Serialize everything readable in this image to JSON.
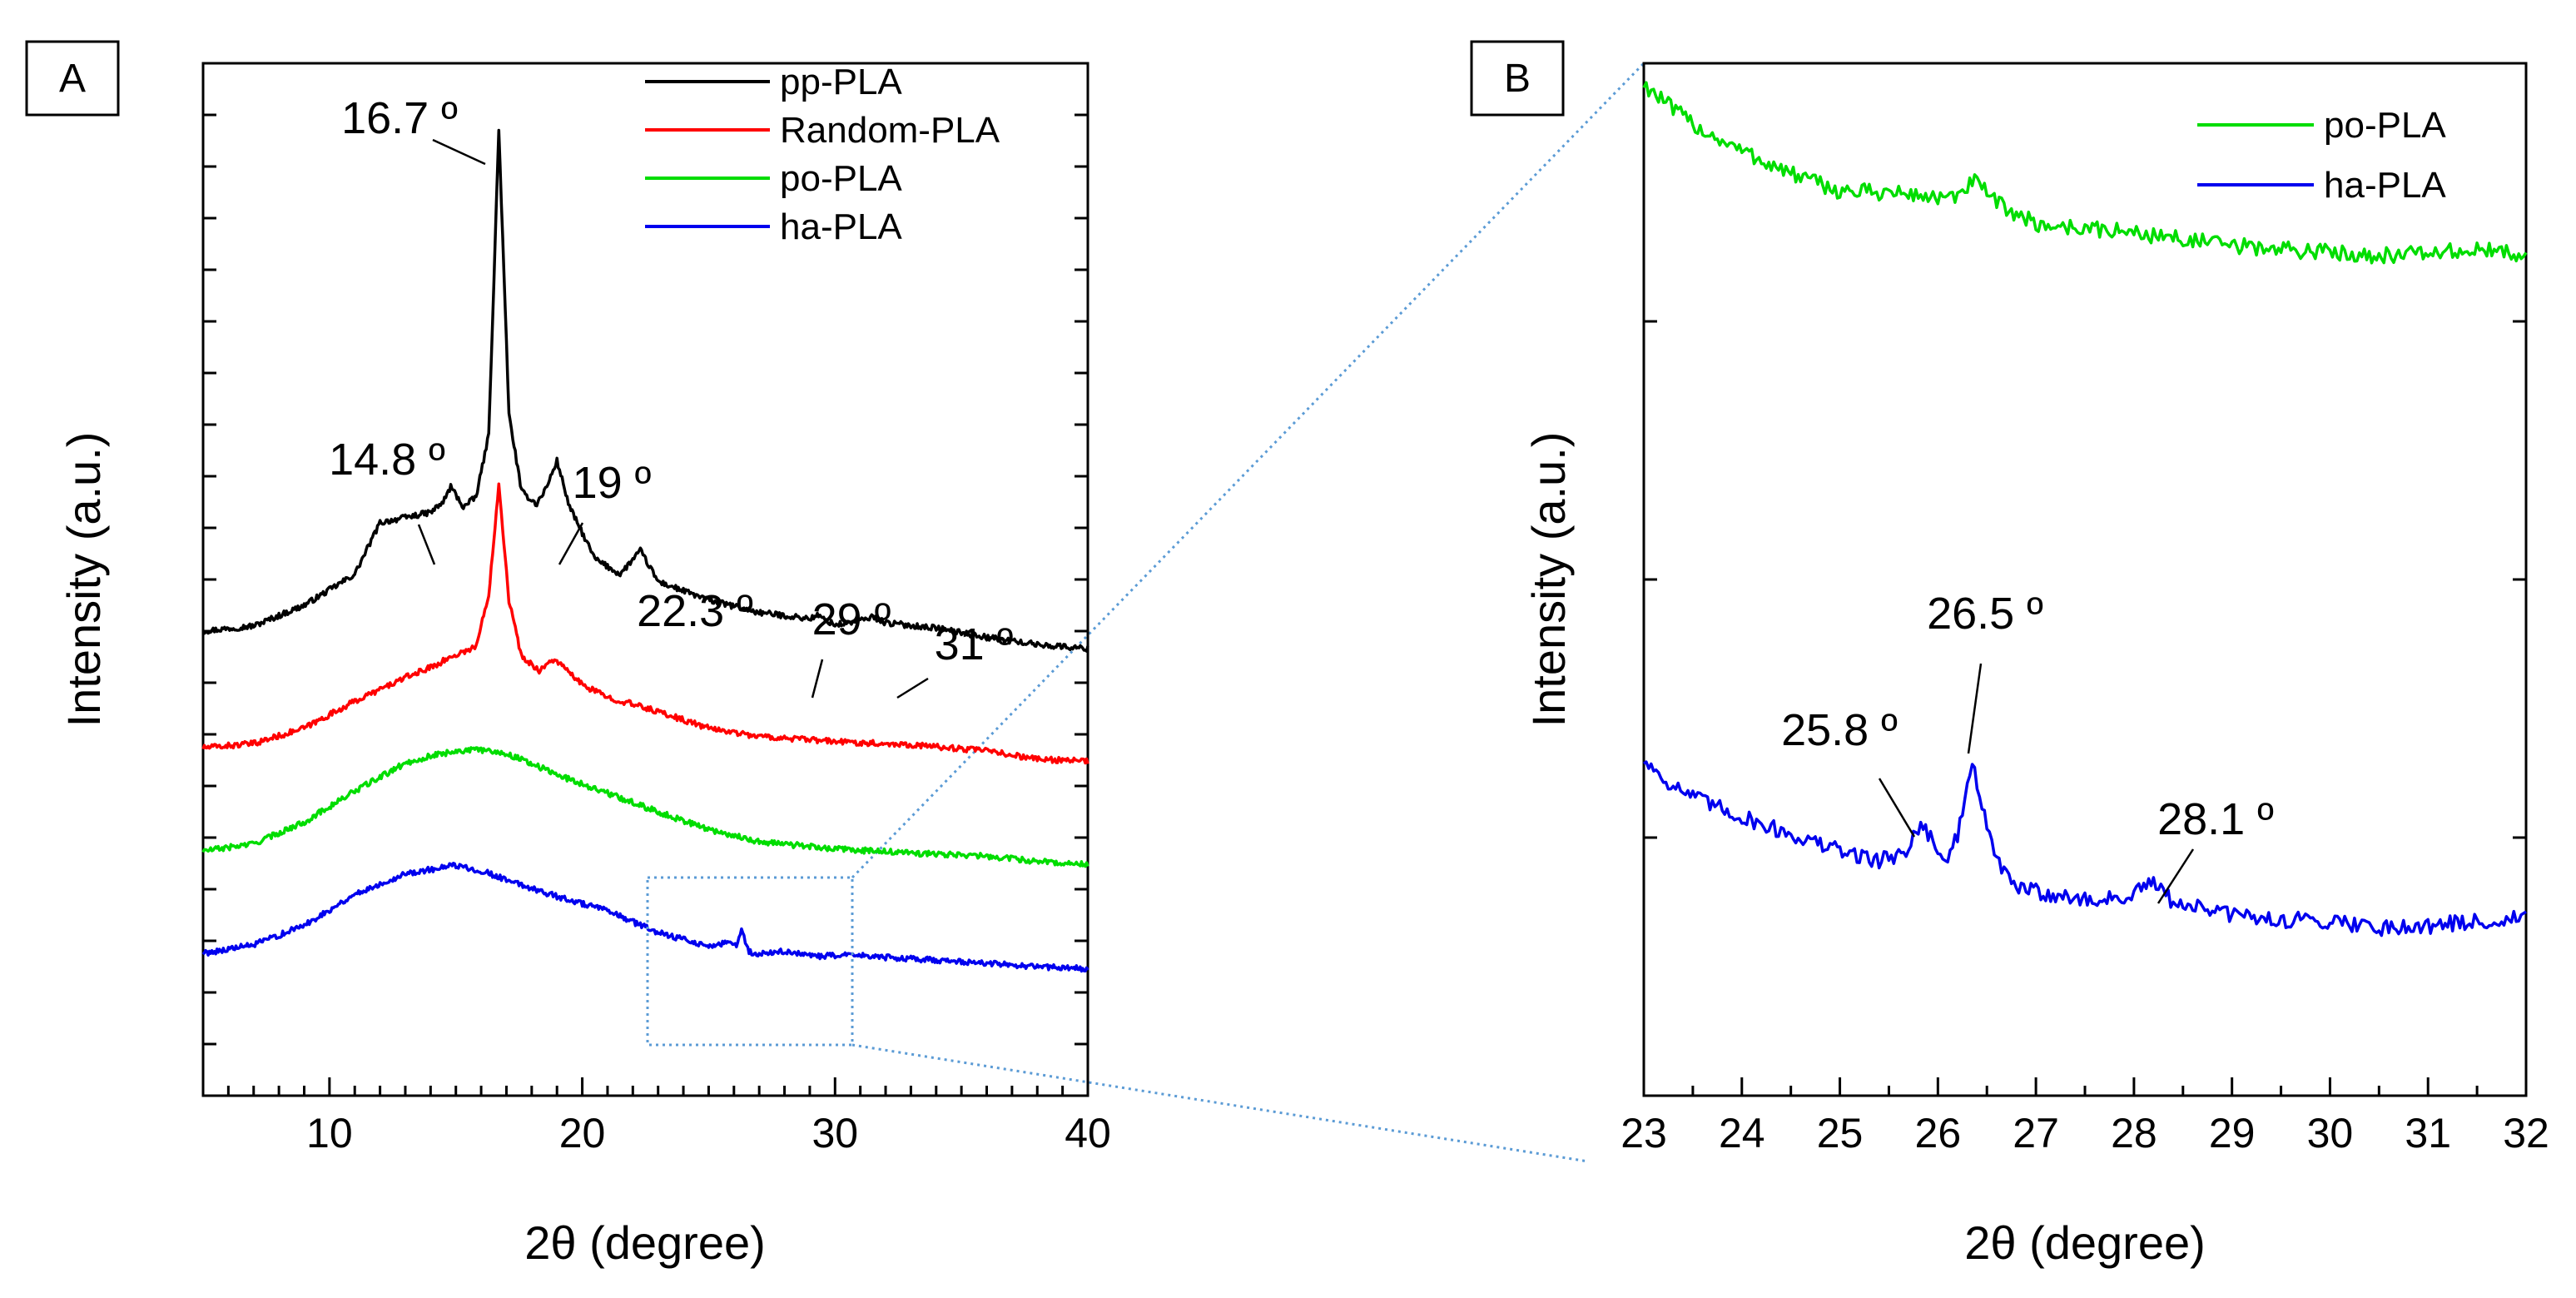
{
  "figure": {
    "panel_a_tag": "A",
    "panel_b_tag": "B"
  },
  "chart_data": [
    {
      "type": "line",
      "panel": "A",
      "xlabel": "2θ (degree)",
      "ylabel": "Intensity (a.u.)",
      "xlim": [
        5,
        40
      ],
      "ylim": [
        0,
        100
      ],
      "x_ticks": [
        10,
        20,
        30,
        40
      ],
      "y_tick_labels": "none",
      "legend": {
        "placement": "top-right",
        "entries": [
          "pp-PLA",
          "Random-PLA",
          "po-PLA",
          "ha-PLA"
        ]
      },
      "colors": {
        "pp-PLA": "#000000",
        "Random-PLA": "#ff0000",
        "po-PLA": "#00dd00",
        "ha-PLA": "#0000ee"
      },
      "series": [
        {
          "name": "pp-PLA",
          "points": [
            [
              5,
              45
            ],
            [
              7,
              45.5
            ],
            [
              9,
              47.5
            ],
            [
              11,
              50.5
            ],
            [
              12,
              55.5
            ],
            [
              13,
              56
            ],
            [
              14,
              56.5
            ],
            [
              14.5,
              57.5
            ],
            [
              14.8,
              59
            ],
            [
              15.3,
              57
            ],
            [
              15.8,
              58
            ],
            [
              16.3,
              64
            ],
            [
              16.7,
              93.5
            ],
            [
              17.1,
              66
            ],
            [
              17.6,
              58.5
            ],
            [
              18.2,
              57.3
            ],
            [
              18.6,
              59
            ],
            [
              19.0,
              61.5
            ],
            [
              19.5,
              57
            ],
            [
              20.5,
              52
            ],
            [
              21.5,
              50.5
            ],
            [
              22.3,
              52.8
            ],
            [
              23,
              49.8
            ],
            [
              25,
              48
            ],
            [
              27,
              46.8
            ],
            [
              29,
              46.2
            ],
            [
              29.3,
              46.5
            ],
            [
              30,
              45.6
            ],
            [
              31,
              46
            ],
            [
              31.5,
              46.4
            ],
            [
              32,
              45.8
            ],
            [
              34,
              45.3
            ],
            [
              36,
              44.4
            ],
            [
              38,
              43.7
            ],
            [
              40,
              43.3
            ]
          ],
          "annotations": [
            {
              "x": 16.7,
              "label": "16.7 º"
            },
            {
              "x": 14.8,
              "label": "14.8 º"
            },
            {
              "x": 19.0,
              "label": "19 º"
            },
            {
              "x": 22.3,
              "label": "22.3 º"
            },
            {
              "x": 29.0,
              "label": "29 º"
            },
            {
              "x": 31.0,
              "label": "31 º"
            }
          ]
        },
        {
          "name": "Random-PLA",
          "points": [
            [
              5,
              33.7
            ],
            [
              7,
              34.1
            ],
            [
              9,
              35.6
            ],
            [
              11,
              38.2
            ],
            [
              13,
              40.5
            ],
            [
              14,
              41.5
            ],
            [
              15,
              42.7
            ],
            [
              15.8,
              43.5
            ],
            [
              16.3,
              48.5
            ],
            [
              16.7,
              59.3
            ],
            [
              17.1,
              48
            ],
            [
              17.6,
              42.5
            ],
            [
              18.3,
              41.2
            ],
            [
              18.9,
              42.3
            ],
            [
              19.3,
              41.4
            ],
            [
              20,
              39.8
            ],
            [
              21,
              38.6
            ],
            [
              22,
              37.9
            ],
            [
              23,
              37.2
            ],
            [
              25,
              35.6
            ],
            [
              27,
              34.8
            ],
            [
              30,
              34.3
            ],
            [
              33,
              34
            ],
            [
              36,
              33.4
            ],
            [
              38,
              32.6
            ],
            [
              40,
              32.4
            ]
          ]
        },
        {
          "name": "po-PLA",
          "points": [
            [
              5,
              23.7
            ],
            [
              7,
              24.4
            ],
            [
              9,
              26.5
            ],
            [
              11,
              29.5
            ],
            [
              13,
              32.2
            ],
            [
              14,
              32.9
            ],
            [
              15,
              33.4
            ],
            [
              16,
              33.5
            ],
            [
              16.7,
              33.3
            ],
            [
              17.5,
              32.7
            ],
            [
              19,
              31.1
            ],
            [
              21,
              29.3
            ],
            [
              23,
              27.5
            ],
            [
              25,
              25.8
            ],
            [
              27,
              24.6
            ],
            [
              30,
              23.9
            ],
            [
              33,
              23.5
            ],
            [
              36,
              23.2
            ],
            [
              38,
              22.7
            ],
            [
              40,
              22.4
            ]
          ]
        },
        {
          "name": "ha-PLA",
          "points": [
            [
              5,
              13.8
            ],
            [
              7,
              14.6
            ],
            [
              9,
              16.5
            ],
            [
              11,
              19.5
            ],
            [
              13,
              21.5
            ],
            [
              15,
              22.3
            ],
            [
              16,
              21.8
            ],
            [
              17,
              20.9
            ],
            [
              19,
              19.3
            ],
            [
              21,
              17.9
            ],
            [
              23,
              15.8
            ],
            [
              25,
              14.5
            ],
            [
              25.8,
              14.8
            ],
            [
              26.1,
              14.5
            ],
            [
              26.3,
              16.1
            ],
            [
              26.6,
              13.9
            ],
            [
              27,
              13.7
            ],
            [
              28.1,
              14
            ],
            [
              29,
              13.5
            ],
            [
              31,
              13.6
            ],
            [
              32,
              13.4
            ],
            [
              35,
              13
            ],
            [
              38,
              12.5
            ],
            [
              40,
              12.3
            ]
          ]
        }
      ]
    },
    {
      "type": "line",
      "panel": "B",
      "xlabel": "2θ (degree)",
      "ylabel": "Intensity (a.u.)",
      "xlim": [
        23,
        32
      ],
      "ylim": [
        0,
        100
      ],
      "x_ticks": [
        23,
        24,
        25,
        26,
        27,
        28,
        29,
        30,
        31,
        32
      ],
      "y_tick_labels": "none",
      "legend": {
        "placement": "top-right",
        "entries": [
          "po-PLA",
          "ha-PLA"
        ]
      },
      "colors": {
        "po-PLA": "#00dd00",
        "ha-PLA": "#0000ee"
      },
      "series": [
        {
          "name": "po-PLA",
          "points": [
            [
              23,
              98
            ],
            [
              23.3,
              95.5
            ],
            [
              23.6,
              93.5
            ],
            [
              24,
              91.5
            ],
            [
              24.5,
              89.3
            ],
            [
              25,
              87.6
            ],
            [
              25.5,
              87.5
            ],
            [
              26,
              87
            ],
            [
              26.2,
              86.8
            ],
            [
              26.35,
              88.7
            ],
            [
              26.6,
              86.5
            ],
            [
              27,
              84.4
            ],
            [
              27.5,
              84
            ],
            [
              28,
              83.6
            ],
            [
              28.5,
              83
            ],
            [
              29,
              82.3
            ],
            [
              29.5,
              82
            ],
            [
              30,
              81.7
            ],
            [
              30.5,
              81.4
            ],
            [
              31,
              81.6
            ],
            [
              31.5,
              81.9
            ],
            [
              32,
              81.5
            ]
          ]
        },
        {
          "name": "ha-PLA",
          "points": [
            [
              23,
              32.5
            ],
            [
              23.3,
              30
            ],
            [
              23.6,
              28.5
            ],
            [
              24,
              27
            ],
            [
              24.5,
              25.3
            ],
            [
              25,
              23.7
            ],
            [
              25.4,
              22.8
            ],
            [
              25.65,
              23.5
            ],
            [
              25.85,
              26.5
            ],
            [
              26.05,
              22.5
            ],
            [
              26.2,
              25
            ],
            [
              26.35,
              32.4
            ],
            [
              26.55,
              24
            ],
            [
              26.75,
              20.4
            ],
            [
              27,
              19.8
            ],
            [
              27.5,
              18.9
            ],
            [
              28,
              19.3
            ],
            [
              28.15,
              20.8
            ],
            [
              28.4,
              18.8
            ],
            [
              29,
              17.5
            ],
            [
              29.5,
              17
            ],
            [
              30,
              17
            ],
            [
              30.5,
              16.3
            ],
            [
              31,
              16.5
            ],
            [
              31.5,
              16.8
            ],
            [
              32,
              17.3
            ]
          ],
          "annotations": [
            {
              "x": 25.8,
              "label": "25.8 º"
            },
            {
              "x": 26.5,
              "label": "26.5 º"
            },
            {
              "x": 28.1,
              "label": "28.1 º"
            }
          ]
        }
      ]
    }
  ]
}
